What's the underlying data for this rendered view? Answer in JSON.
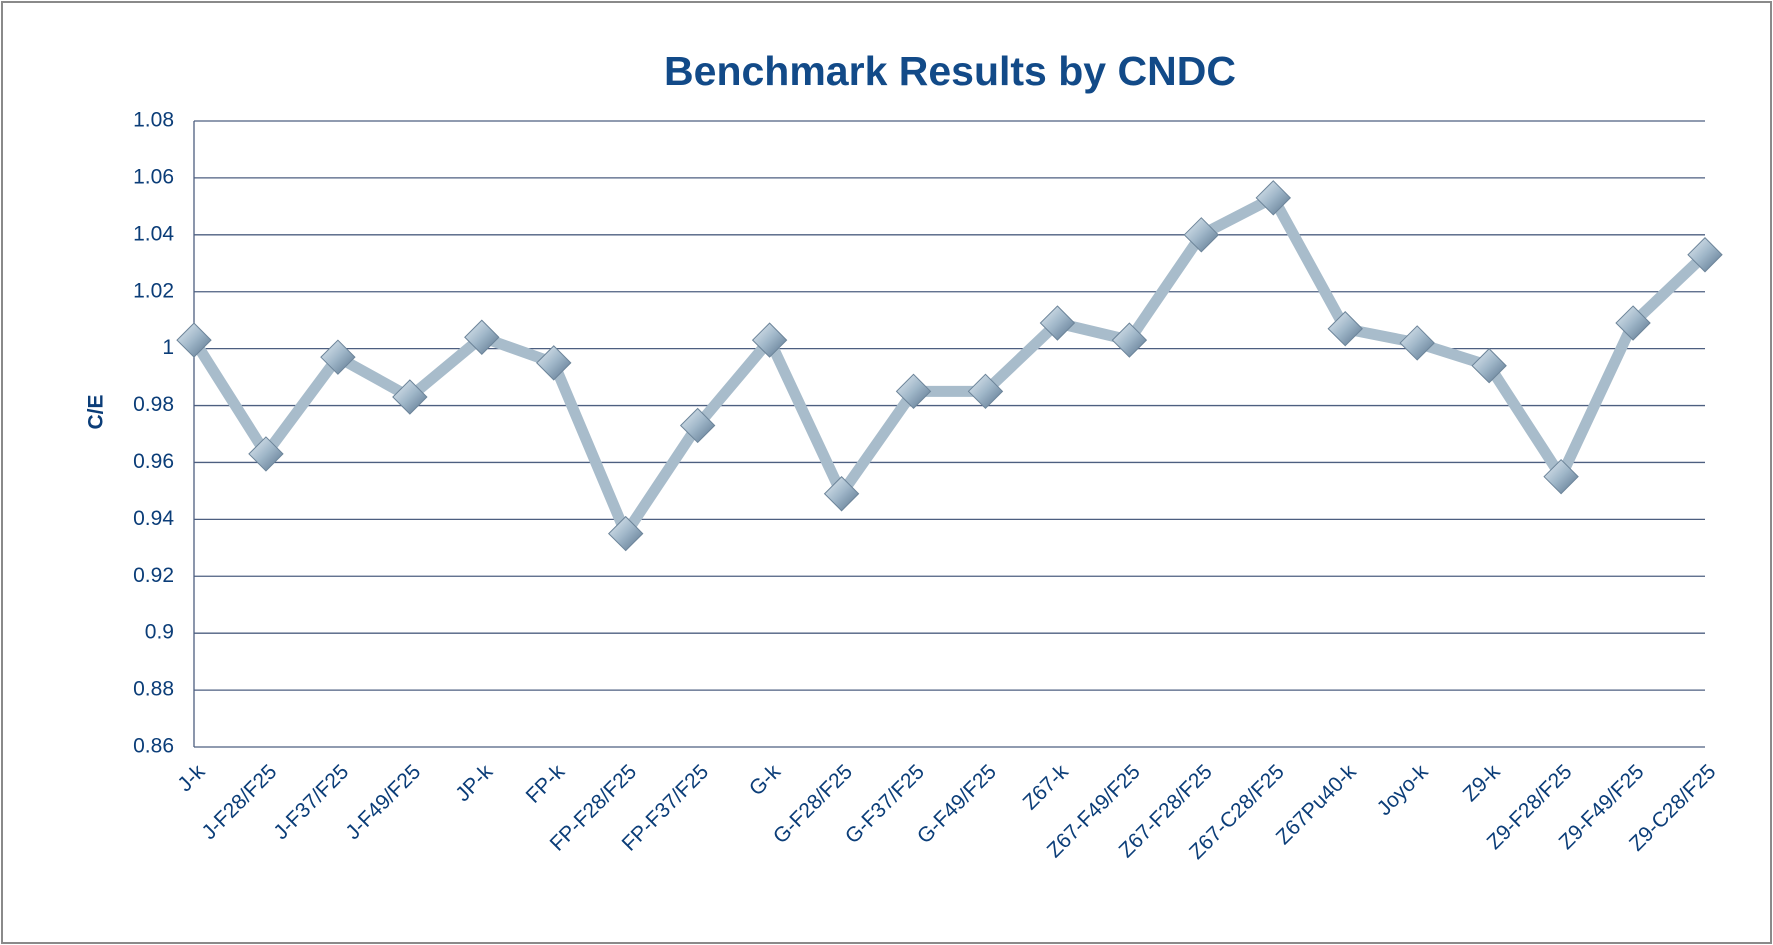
{
  "chart_data": {
    "type": "line",
    "title": "Benchmark  Results by CNDC",
    "y_label": "C/E",
    "categories": [
      "J-k",
      "J-F28/F25",
      "J-F37/F25",
      "J-F49/F25",
      "JP-k",
      "FP-k",
      "FP-F28/F25",
      "FP-F37/F25",
      "G-k",
      "G-F28/F25",
      "G-F37/F25",
      "G-F49/F25",
      "Z67-k",
      "Z67-F49/F25",
      "Z67-F28/F25",
      "Z67-C28/F25",
      "Z67Pu40-k",
      "Joyo-k",
      "Z9-k",
      "Z9-F28/F25",
      "Z9-F49/F25",
      "Z9-C28/F25"
    ],
    "series": [
      {
        "name": "C/E",
        "color": "#a8bccb",
        "values": [
          1.003,
          0.963,
          0.997,
          0.983,
          1.004,
          0.995,
          0.935,
          0.973,
          1.003,
          0.949,
          0.985,
          0.985,
          1.009,
          1.003,
          1.04,
          1.053,
          1.007,
          1.002,
          0.994,
          0.955,
          1.009,
          1.033
        ]
      }
    ],
    "ylim": [
      0.86,
      1.08
    ],
    "yticks": [
      0.86,
      0.88,
      0.9,
      0.92,
      0.94,
      0.96,
      0.98,
      1,
      1.02,
      1.04,
      1.06,
      1.08
    ],
    "grid": true
  }
}
